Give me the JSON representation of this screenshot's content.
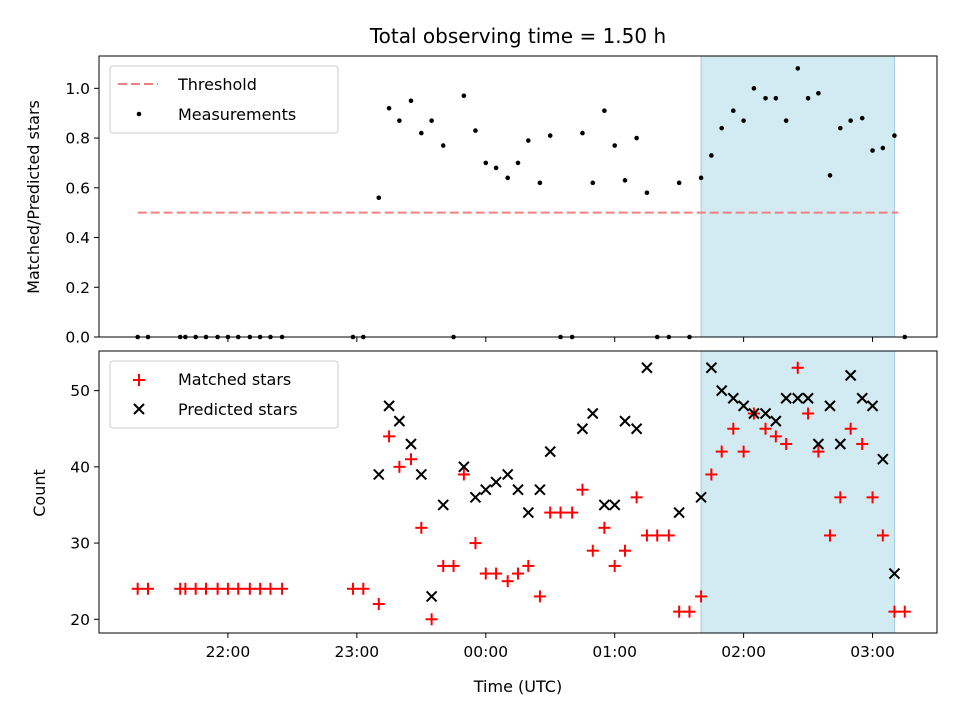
{
  "chart_data": [
    {
      "type": "scatter",
      "title": "Total observing time = 1.50 h",
      "ylabel": "Matched/Predicted stars",
      "ylim": [
        0,
        1.13
      ],
      "xlim_hours": [
        21.0,
        27.5
      ],
      "yticks": [
        0.0,
        0.2,
        0.4,
        0.6,
        0.8,
        1.0
      ],
      "ytick_labels": [
        "0.0",
        "0.2",
        "0.4",
        "0.6",
        "0.8",
        "1.0"
      ],
      "highlight_span_hours": [
        25.67,
        27.17
      ],
      "threshold": {
        "name": "Threshold",
        "value": 0.5,
        "x_range_hours": [
          21.3,
          27.2
        ],
        "color": "#f08080"
      },
      "legend": [
        "Threshold",
        "Measurements"
      ],
      "legend_position": "upper-left",
      "series": [
        {
          "name": "Measurements",
          "color": "#000000",
          "x": [
            21.3,
            21.38,
            21.63,
            21.67,
            21.75,
            21.83,
            21.92,
            22.0,
            22.08,
            22.17,
            22.25,
            22.33,
            22.42,
            22.97,
            23.05,
            23.17,
            23.25,
            23.33,
            23.42,
            23.5,
            23.58,
            23.67,
            23.75,
            23.83,
            23.92,
            24.0,
            24.08,
            24.17,
            24.25,
            24.33,
            24.42,
            24.5,
            24.58,
            24.67,
            24.75,
            24.83,
            24.92,
            25.0,
            25.08,
            25.17,
            25.25,
            25.33,
            25.42,
            25.5,
            25.58,
            25.67,
            25.75,
            25.83,
            25.92,
            26.0,
            26.08,
            26.17,
            26.25,
            26.33,
            26.42,
            26.5,
            26.58,
            26.67,
            26.75,
            26.83,
            26.92,
            27.0,
            27.08,
            27.17,
            27.25
          ],
          "y": [
            0,
            0,
            0,
            0,
            0,
            0,
            0,
            0,
            0,
            0,
            0,
            0,
            0,
            0,
            0,
            0.56,
            0.92,
            0.87,
            0.95,
            0.82,
            0.87,
            0.77,
            0,
            0.97,
            0.83,
            0.7,
            0.68,
            0.64,
            0.7,
            0.79,
            0.62,
            0.81,
            0,
            0,
            0.82,
            0.62,
            0.91,
            0.77,
            0.63,
            0.8,
            0.58,
            0,
            0,
            0.62,
            0,
            0.64,
            0.73,
            0.84,
            0.91,
            0.87,
            1.0,
            0.96,
            0.96,
            0.87,
            1.08,
            0.96,
            0.98,
            0.65,
            0.84,
            0.87,
            0.88,
            0.75,
            0.76,
            0.81,
            0
          ]
        }
      ]
    },
    {
      "type": "scatter",
      "xlabel": "Time (UTC)",
      "ylabel": "Count",
      "ylim": [
        18.2,
        55.2
      ],
      "yticks": [
        20,
        30,
        40,
        50
      ],
      "xticks_hours": [
        22,
        23,
        24,
        25,
        26,
        27
      ],
      "xtick_labels": [
        "22:00",
        "23:00",
        "00:00",
        "01:00",
        "02:00",
        "03:00"
      ],
      "highlight_span_hours": [
        25.67,
        27.17
      ],
      "legend": [
        "Matched stars",
        "Predicted stars"
      ],
      "legend_position": "upper-left",
      "series": [
        {
          "name": "Matched stars",
          "marker": "plus",
          "color": "#ff0000",
          "x": [
            21.3,
            21.38,
            21.63,
            21.67,
            21.75,
            21.83,
            21.92,
            22.0,
            22.08,
            22.17,
            22.25,
            22.33,
            22.42,
            22.97,
            23.05,
            23.17,
            23.25,
            23.33,
            23.42,
            23.5,
            23.58,
            23.67,
            23.75,
            23.83,
            23.92,
            24.0,
            24.08,
            24.17,
            24.25,
            24.33,
            24.42,
            24.5,
            24.58,
            24.67,
            24.75,
            24.83,
            24.92,
            25.0,
            25.08,
            25.17,
            25.25,
            25.33,
            25.42,
            25.5,
            25.58,
            25.67,
            25.75,
            25.83,
            25.92,
            26.0,
            26.08,
            26.17,
            26.25,
            26.33,
            26.42,
            26.5,
            26.58,
            26.67,
            26.75,
            26.83,
            26.92,
            27.0,
            27.08,
            27.17,
            27.25
          ],
          "y": [
            24,
            24,
            24,
            24,
            24,
            24,
            24,
            24,
            24,
            24,
            24,
            24,
            24,
            24,
            24,
            22,
            44,
            40,
            41,
            32,
            20,
            27,
            27,
            39,
            30,
            26,
            26,
            25,
            26,
            27,
            23,
            34,
            34,
            34,
            37,
            29,
            32,
            27,
            29,
            36,
            31,
            31,
            31,
            21,
            21,
            23,
            39,
            42,
            45,
            42,
            47,
            45,
            44,
            43,
            53,
            47,
            42,
            31,
            36,
            45,
            43,
            36,
            31,
            21,
            21
          ]
        },
        {
          "name": "Predicted stars",
          "marker": "x",
          "color": "#000000",
          "x": [
            23.17,
            23.25,
            23.33,
            23.42,
            23.5,
            23.58,
            23.67,
            23.83,
            23.92,
            24.0,
            24.08,
            24.17,
            24.25,
            24.33,
            24.42,
            24.5,
            24.75,
            24.83,
            24.92,
            25.0,
            25.08,
            25.17,
            25.25,
            25.5,
            25.67,
            25.75,
            25.83,
            25.92,
            26.0,
            26.08,
            26.17,
            26.25,
            26.33,
            26.42,
            26.5,
            26.58,
            26.67,
            26.75,
            26.83,
            26.92,
            27.0,
            27.08,
            27.17
          ],
          "y": [
            39,
            48,
            46,
            43,
            39,
            23,
            35,
            40,
            36,
            37,
            38,
            39,
            37,
            34,
            37,
            42,
            45,
            47,
            35,
            35,
            46,
            45,
            53,
            34,
            36,
            53,
            50,
            49,
            48,
            47,
            47,
            46,
            49,
            49,
            49,
            43,
            48,
            43,
            52,
            49,
            48,
            41,
            26
          ]
        }
      ]
    }
  ]
}
